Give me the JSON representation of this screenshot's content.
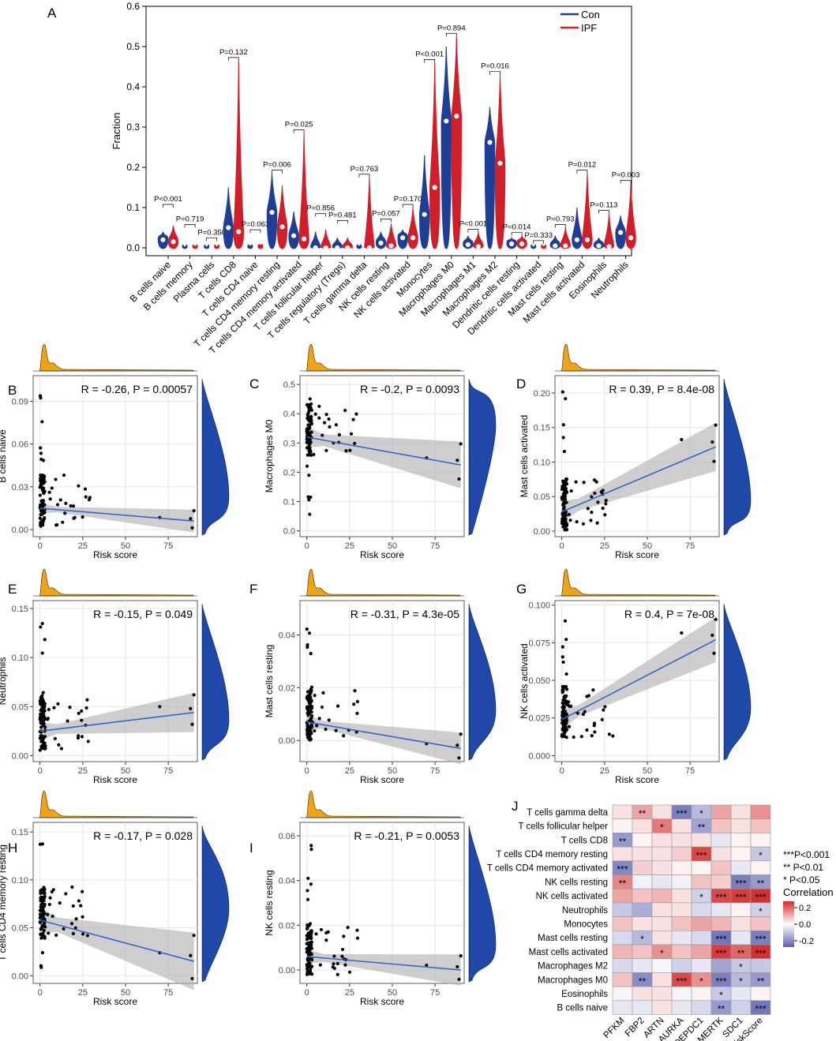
{
  "panels": {
    "A": {
      "label": "A",
      "chart_data": {
        "type": "violin",
        "ylabel": "Fraction",
        "ylim": [
          0,
          0.6
        ],
        "yticks": [
          0.0,
          0.1,
          0.2,
          0.3,
          0.4,
          0.5,
          0.6
        ],
        "legend": [
          {
            "name": "Con",
            "color": "#1f3f96"
          },
          {
            "name": "IPF",
            "color": "#d11f2a"
          }
        ],
        "groups": [
          {
            "name": "B cells naive",
            "p": "P<0.001",
            "con_med": 0.02,
            "con_max": 0.04,
            "ipf_med": 0.015,
            "ipf_max": 0.055,
            "bracket": 0.1
          },
          {
            "name": "B cells memory",
            "p": "P=0.719",
            "con_med": 0.0,
            "con_max": 0.002,
            "ipf_med": 0.0,
            "ipf_max": 0.004,
            "bracket": 0.05
          },
          {
            "name": "Plasma cells",
            "p": "P=0.350",
            "con_med": 0.0,
            "con_max": 0.002,
            "ipf_med": 0.0,
            "ipf_max": 0.003,
            "bracket": 0.017
          },
          {
            "name": "T cells CD8",
            "p": "P=0.132",
            "con_med": 0.05,
            "con_max": 0.15,
            "ipf_med": 0.04,
            "ipf_max": 0.465,
            "bracket": 0.465
          },
          {
            "name": "T cells CD4 naive",
            "p": "P=0.063",
            "con_med": 0.0,
            "con_max": 0.005,
            "ipf_med": 0.0,
            "ipf_max": 0.008,
            "bracket": 0.037
          },
          {
            "name": "T cells CD4 memory resting",
            "p": "P=0.006",
            "con_med": 0.088,
            "con_max": 0.185,
            "ipf_med": 0.052,
            "ipf_max": 0.155,
            "bracket": 0.185
          },
          {
            "name": "T cells CD4 memory activated",
            "p": "P=0.025",
            "con_med": 0.03,
            "con_max": 0.09,
            "ipf_med": 0.022,
            "ipf_max": 0.285,
            "bracket": 0.285
          },
          {
            "name": "T cells follicular helper",
            "p": "P=0.856",
            "con_med": 0.0,
            "con_max": 0.04,
            "ipf_med": 0.0,
            "ipf_max": 0.045,
            "bracket": 0.077
          },
          {
            "name": "T cells regulatory (Tregs)",
            "p": "P=0.481",
            "con_med": 0.0,
            "con_max": 0.025,
            "ipf_med": 0.0,
            "ipf_max": 0.025,
            "bracket": 0.06
          },
          {
            "name": "T cells gamma delta",
            "p": "P=0.763",
            "con_med": 0.0,
            "con_max": 0.005,
            "ipf_med": 0.0,
            "ipf_max": 0.175,
            "bracket": 0.175
          },
          {
            "name": "NK cells resting",
            "p": "P=0.057",
            "con_med": 0.012,
            "con_max": 0.04,
            "ipf_med": 0.005,
            "ipf_max": 0.06,
            "bracket": 0.064
          },
          {
            "name": "NK cells activated",
            "p": "P=0.170",
            "con_med": 0.025,
            "con_max": 0.045,
            "ipf_med": 0.025,
            "ipf_max": 0.1,
            "bracket": 0.1
          },
          {
            "name": "Monocytes",
            "p": "P<0.001",
            "con_med": 0.083,
            "con_max": 0.23,
            "ipf_med": 0.15,
            "ipf_max": 0.46,
            "bracket": 0.46
          },
          {
            "name": "Macrophages M0",
            "p": "P=0.894",
            "con_med": 0.315,
            "con_max": 0.5,
            "ipf_med": 0.327,
            "ipf_max": 0.525,
            "bracket": 0.525
          },
          {
            "name": "Macrophages M1",
            "p": "P<0.001",
            "con_med": 0.008,
            "con_max": 0.03,
            "ipf_med": 0.003,
            "ipf_max": 0.038,
            "bracket": 0.038
          },
          {
            "name": "Macrophages M2",
            "p": "P=0.016",
            "con_med": 0.262,
            "con_max": 0.35,
            "ipf_med": 0.21,
            "ipf_max": 0.43,
            "bracket": 0.43
          },
          {
            "name": "Dendritic cells resting",
            "p": "P=0.014",
            "con_med": 0.01,
            "con_max": 0.025,
            "ipf_med": 0.01,
            "ipf_max": 0.03,
            "bracket": 0.03
          },
          {
            "name": "Dendritic cells activated",
            "p": "P=0.333",
            "con_med": 0.0,
            "con_max": 0.002,
            "ipf_med": 0.0,
            "ipf_max": 0.003,
            "bracket": 0.01
          },
          {
            "name": "Mast cells resting",
            "p": "P=0.793",
            "con_med": 0.005,
            "con_max": 0.03,
            "ipf_med": 0.005,
            "ipf_max": 0.05,
            "bracket": 0.05
          },
          {
            "name": "Mast cells activated",
            "p": "P=0.012",
            "con_med": 0.02,
            "con_max": 0.1,
            "ipf_med": 0.02,
            "ipf_max": 0.185,
            "bracket": 0.185
          },
          {
            "name": "Eosinophils",
            "p": "P=0.113",
            "con_med": 0.005,
            "con_max": 0.025,
            "ipf_med": 0.003,
            "ipf_max": 0.085,
            "bracket": 0.085
          },
          {
            "name": "Neutrophils",
            "p": "P=0.003",
            "con_med": 0.038,
            "con_max": 0.08,
            "ipf_med": 0.025,
            "ipf_max": 0.16,
            "bracket": 0.16
          }
        ]
      }
    },
    "scatter": [
      {
        "label": "B",
        "ylabel": "B cells naive",
        "stat": "R = -0.26, P = 0.00057",
        "yticks": [
          "0.00",
          "0.03",
          "0.06",
          "0.09"
        ],
        "ylim": [
          -0.005,
          0.108
        ],
        "fit": [
          0.015,
          0.006
        ],
        "band": 0.008
      },
      {
        "label": "C",
        "ylabel": "Macrophages M0",
        "stat": "R = -0.2, P = 0.0093",
        "yticks": [
          "0.0",
          "0.1",
          "0.2",
          "0.3",
          "0.4",
          "0.5"
        ],
        "ylim": [
          -0.02,
          0.53
        ],
        "fit": [
          0.32,
          0.225
        ],
        "band": 0.08
      },
      {
        "label": "D",
        "ylabel": "Mast cells activated",
        "stat": "R = 0.39, P = 8.4e-08",
        "yticks": [
          "0.00",
          "0.05",
          "0.10",
          "0.15",
          "0.20"
        ],
        "ylim": [
          -0.008,
          0.225
        ],
        "fit": [
          0.028,
          0.122
        ],
        "band": 0.035
      },
      {
        "label": "E",
        "ylabel": "Neutrophils",
        "stat": "R = -0.15, P = 0.049",
        "yticks": [
          "0.00",
          "0.05",
          "0.10",
          "0.15"
        ],
        "ylim": [
          -0.006,
          0.158
        ],
        "fit": [
          0.025,
          0.044
        ],
        "band": 0.02
      },
      {
        "label": "F",
        "ylabel": "Mast cells resting",
        "stat": "R = -0.31, P = 4.3e-05",
        "yticks": [
          "0.00",
          "0.02",
          "0.04"
        ],
        "ylim": [
          -0.008,
          0.053
        ],
        "fit": [
          0.007,
          -0.003
        ],
        "band": 0.006
      },
      {
        "label": "G",
        "ylabel": "NK cells activated",
        "stat": "R = 0.4, P = 7e-08",
        "yticks": [
          "0.000",
          "0.025",
          "0.050",
          "0.075",
          "0.100"
        ],
        "ylim": [
          -0.004,
          0.103
        ],
        "fit": [
          0.024,
          0.077
        ],
        "band": 0.015
      },
      {
        "label": "H",
        "ylabel": "T cells CD4 memory resting",
        "stat": "R = -0.17, P = 0.028",
        "yticks": [
          "0.00",
          "0.05",
          "0.10",
          "0.15"
        ],
        "ylim": [
          -0.008,
          0.16
        ],
        "fit": [
          0.058,
          0.015
        ],
        "band": 0.03
      },
      {
        "label": "I",
        "ylabel": "NK cells resting",
        "stat": "R = -0.21, P = 0.0053",
        "yticks": [
          "0.00",
          "0.02",
          "0.04",
          "0.06"
        ],
        "ylim": [
          -0.006,
          0.066
        ],
        "fit": [
          0.006,
          0.0
        ],
        "band": 0.007
      }
    ],
    "xaxis": {
      "label": "Risk score",
      "ticks": [
        "0",
        "25",
        "50",
        "75"
      ],
      "xlim": [
        -4,
        92
      ]
    },
    "J": {
      "label": "J",
      "chart_data": {
        "type": "heatmap",
        "rows": [
          "T cells gamma delta",
          "T cells follicular helper",
          "T cells CD8",
          "T cells CD4 memory resting",
          "T cells CD4 memory activated",
          "NK cells resting",
          "NK cells activated",
          "Neutrophils",
          "Monocytes",
          "Mast cells resting",
          "Mast cells activated",
          "Macrophages M2",
          "Macrophages M0",
          "Eosinophils",
          "B cells naive"
        ],
        "cols": [
          "PFKM",
          "FBP2",
          "ARTN",
          "AURKA",
          "DEPDC1",
          "MERTK",
          "SDC1",
          "riskScore"
        ],
        "values": [
          [
            0.05,
            0.15,
            0.05,
            -0.28,
            -0.15,
            0.15,
            0.05,
            0.18
          ],
          [
            0.02,
            0.05,
            0.22,
            0.05,
            -0.2,
            0.1,
            0.05,
            0.1
          ],
          [
            -0.22,
            0.02,
            0.05,
            0.05,
            0.05,
            -0.05,
            0.02,
            0.02
          ],
          [
            0.05,
            0.05,
            0.05,
            0.08,
            0.3,
            0.05,
            0.02,
            -0.12
          ],
          [
            -0.26,
            0.08,
            0.05,
            0.02,
            0.02,
            0.1,
            -0.05,
            0.02
          ],
          [
            0.2,
            -0.03,
            -0.05,
            -0.03,
            0.1,
            0.08,
            -0.28,
            -0.22
          ],
          [
            0.15,
            0.1,
            0.12,
            0.05,
            -0.1,
            0.3,
            0.32,
            0.34
          ],
          [
            -0.12,
            -0.18,
            0.05,
            0.05,
            -0.08,
            -0.05,
            0.02,
            -0.1
          ],
          [
            0.1,
            0.05,
            0.05,
            0.1,
            0.15,
            0.12,
            0.05,
            0.1
          ],
          [
            -0.08,
            -0.15,
            0.05,
            -0.05,
            -0.08,
            -0.3,
            -0.05,
            -0.28
          ],
          [
            0.12,
            0.1,
            0.18,
            0.1,
            0.15,
            0.32,
            0.25,
            0.34
          ],
          [
            -0.08,
            -0.05,
            -0.02,
            -0.1,
            -0.05,
            -0.2,
            -0.12,
            -0.12
          ],
          [
            0.1,
            -0.25,
            0.05,
            0.3,
            0.18,
            -0.28,
            -0.15,
            -0.22
          ],
          [
            -0.02,
            0.05,
            0.05,
            -0.02,
            0.02,
            -0.12,
            -0.05,
            0.02
          ],
          [
            -0.05,
            -0.05,
            0.05,
            -0.05,
            -0.08,
            -0.22,
            -0.1,
            -0.3
          ]
        ],
        "stars": [
          [
            "",
            "**",
            "",
            "***",
            "*",
            "",
            "",
            ""
          ],
          [
            "",
            "",
            "*",
            "",
            "**",
            "",
            "",
            ""
          ],
          [
            "**",
            "",
            "",
            "",
            "",
            "",
            "",
            ""
          ],
          [
            "",
            "",
            "",
            "",
            "***",
            "",
            "",
            "*"
          ],
          [
            "***",
            "",
            "",
            "",
            "",
            "",
            "",
            ""
          ],
          [
            "**",
            "",
            "",
            "",
            "",
            "",
            "***",
            "**"
          ],
          [
            "",
            "",
            "",
            "",
            "*",
            "***",
            "***",
            "***"
          ],
          [
            "",
            "",
            "",
            "",
            "",
            "",
            "",
            "*"
          ],
          [
            "",
            "",
            "",
            "",
            "",
            "",
            "",
            ""
          ],
          [
            "",
            "*",
            "",
            "",
            "",
            "***",
            "",
            "***"
          ],
          [
            "",
            "",
            "*",
            "",
            "",
            "***",
            "**",
            "***"
          ],
          [
            "",
            "",
            "",
            "",
            "",
            "",
            "*",
            ""
          ],
          [
            "",
            "**",
            "",
            "***",
            "*",
            "***",
            "*",
            "**"
          ],
          [
            "",
            "",
            "",
            "",
            "",
            "*",
            "",
            ""
          ],
          [
            "",
            "",
            "",
            "",
            "",
            "**",
            "",
            "***"
          ]
        ],
        "sig_legend": [
          "***P<0.001",
          "** P<0.01",
          "*  P<0.05"
        ],
        "color_title": "Correlation",
        "color_ticks": [
          "0.2",
          "0.0",
          "-0.2"
        ],
        "colors": {
          "high": "#d42a2a",
          "mid": "#ffffff",
          "low": "#5a5fb0"
        }
      }
    }
  }
}
